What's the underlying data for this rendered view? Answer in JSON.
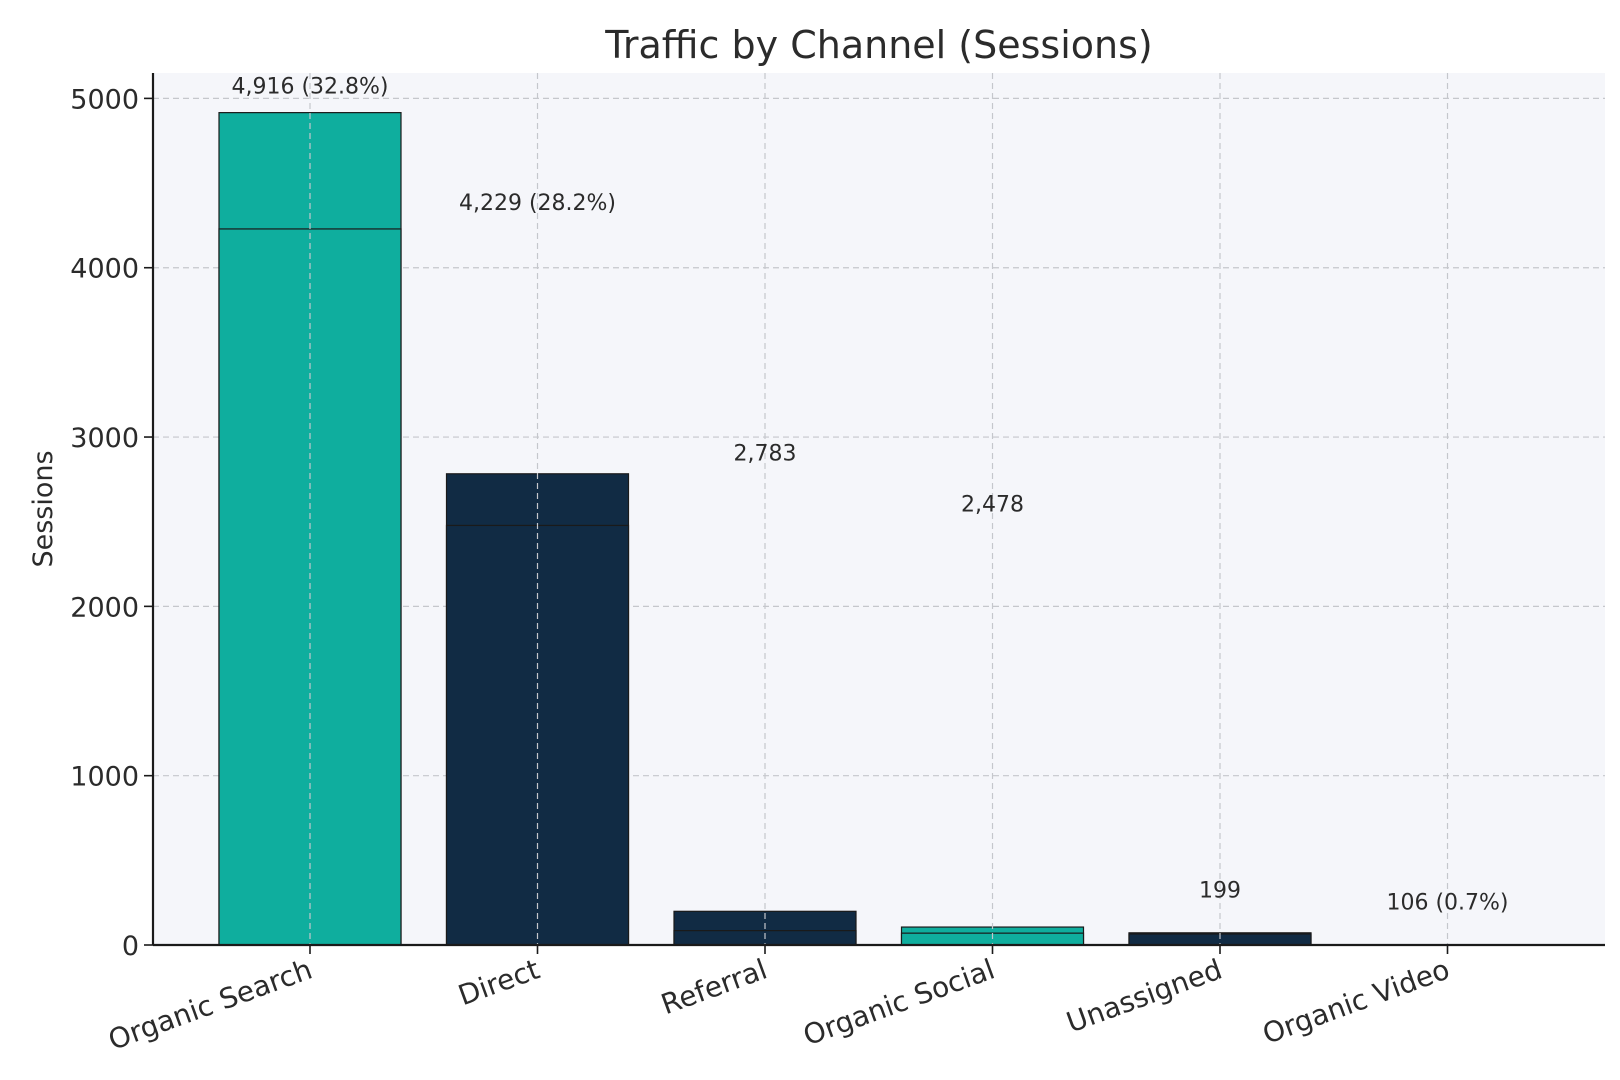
{
  "chart_data": {
    "type": "bar",
    "title": "Traffic by Channel (Sessions)",
    "xlabel": "",
    "ylabel": "Sessions",
    "ylim": [
      0,
      5150
    ],
    "yticks": [
      0,
      1000,
      2000,
      3000,
      4000,
      5000
    ],
    "grid": true,
    "categories": [
      "Organic Search",
      "Direct",
      "Referral",
      "Organic Social",
      "Unassigned",
      "Organic Video"
    ],
    "series": [
      {
        "values": [
          4916,
          2783,
          199,
          106,
          72,
          0
        ],
        "color": "#0fae9e"
      },
      {
        "values": [
          4229,
          2478,
          85,
          70,
          65,
          0
        ],
        "color": "#112b44"
      }
    ],
    "bar_colors_front": [
      "#0fae9e",
      "#112b44",
      "#112b44",
      "#0fae9e",
      "#112b44",
      "#0fae9e"
    ],
    "data_labels": [
      {
        "text": "4,916 (32.8%)",
        "x": 0,
        "y": 5030
      },
      {
        "text": "4,229 (28.2%)",
        "x": 1,
        "y": 4340
      },
      {
        "text": "2,783",
        "x": 2,
        "y": 2860
      },
      {
        "text": "2,478",
        "x": 3,
        "y": 2560
      },
      {
        "text": "199",
        "x": 4,
        "y": 280
      },
      {
        "text": "106 (0.7%)",
        "x": 5,
        "y": 210
      }
    ],
    "colors": {
      "plot_background": "#f5f6fa",
      "teal": "#0fae9e",
      "navy": "#112b44"
    }
  }
}
